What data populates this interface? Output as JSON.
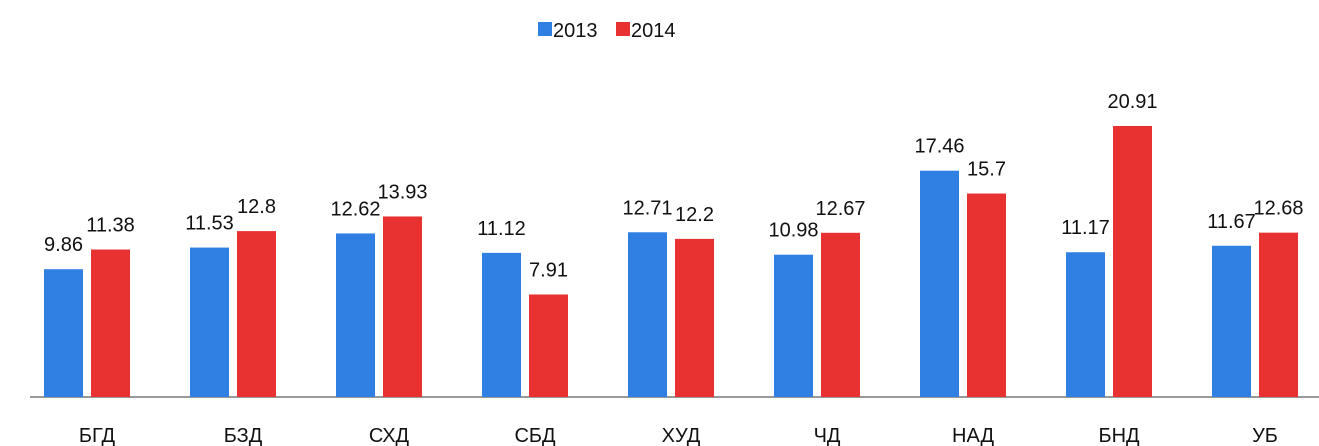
{
  "chart_data": {
    "type": "bar",
    "categories": [
      "БГД",
      "БЗД",
      "СХД",
      "СБД",
      "ХУД",
      "ЧД",
      "НАД",
      "БНД",
      "УБ"
    ],
    "series": [
      {
        "name": "2013",
        "color": "#2f80e2",
        "values": [
          9.86,
          11.53,
          12.62,
          11.12,
          12.71,
          10.98,
          17.46,
          11.17,
          11.67
        ]
      },
      {
        "name": "2014",
        "color": "#e83131",
        "values": [
          11.38,
          12.8,
          13.93,
          7.91,
          12.2,
          12.67,
          15.7,
          20.91,
          12.68
        ]
      }
    ]
  }
}
